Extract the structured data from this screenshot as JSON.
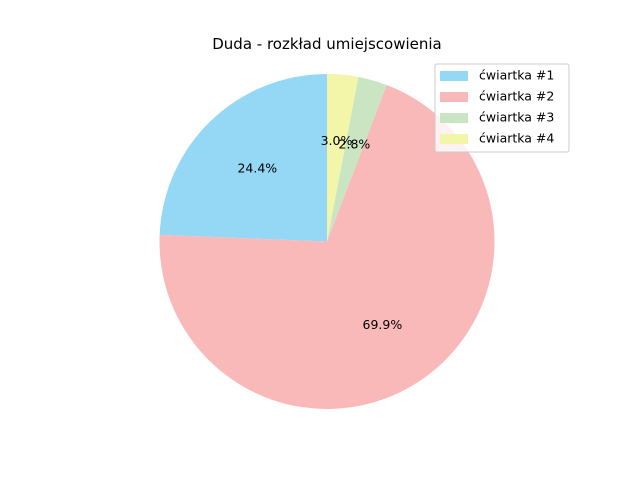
{
  "chart_data": {
    "type": "pie",
    "title": "Duda - rozkład umiejscowienia",
    "categories": [
      "ćwiartka #1",
      "ćwiartka #2",
      "ćwiartka #3",
      "ćwiartka #4"
    ],
    "values": [
      24.4,
      69.9,
      2.8,
      3.0
    ],
    "value_labels": [
      "24.4%",
      "69.9%",
      "2.8%",
      "3.0%"
    ],
    "colors": [
      "#95d8f6",
      "#f9b9b9",
      "#c9e5c1",
      "#f3f5a9"
    ],
    "start_angle_deg": 90,
    "direction": "counterclockwise",
    "legend": {
      "placement": "top-right",
      "entries": [
        "ćwiartka #1",
        "ćwiartka #2",
        "ćwiartka #3",
        "ćwiartka #4"
      ]
    }
  }
}
